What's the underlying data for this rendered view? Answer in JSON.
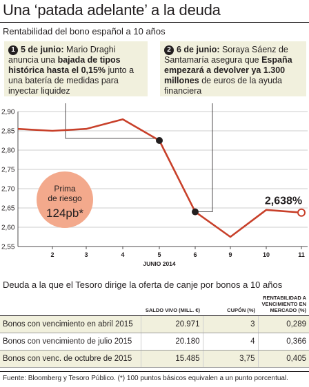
{
  "header": {
    "title": "Una ‘patada adelante’ a la deuda",
    "subtitle": "Rentabilidad del bono español a 10 años"
  },
  "notes": [
    {
      "number": "1",
      "date": "5 de junio:",
      "text_a": " Mario Draghi anuncia una ",
      "bold": "bajada de tipos histórica hasta el 0,15%",
      "text_b": " junto a una batería de medidas para inyectar liquidez"
    },
    {
      "number": "2",
      "date": "6 de junio:",
      "text_a": " Soraya Sáenz de Santamaría asegura que ",
      "bold": "España empezará a devolver ya 1.300 millones",
      "text_b": " de euros de la ayuda financiera"
    }
  ],
  "badge": {
    "line1": "Prima",
    "line2": "de riesgo",
    "value": "124pb*"
  },
  "chart_data": {
    "type": "line",
    "x": [
      "",
      "2",
      "3",
      "4",
      "5",
      "6",
      "9",
      "10",
      "11"
    ],
    "series": [
      {
        "values": [
          2.855,
          2.85,
          2.855,
          2.88,
          2.825,
          2.64,
          2.575,
          2.645,
          2.638
        ]
      }
    ],
    "xlabel": "JUNIO 2014",
    "ylabel": "",
    "ylim": [
      2.55,
      2.9
    ],
    "yticks": [
      "2,90",
      "2,85",
      "2,80",
      "2,75",
      "2,70",
      "2,65",
      "2,60",
      "2,55"
    ],
    "ytick_values": [
      2.9,
      2.85,
      2.8,
      2.75,
      2.7,
      2.65,
      2.6,
      2.55
    ],
    "highlight_label": "2,638%",
    "highlight_index": 8,
    "marked_points": [
      4,
      5
    ],
    "grid": true,
    "colors": {
      "line": "#c8402a",
      "grid": "#9a9a9a",
      "fill": "#f1f0dd"
    }
  },
  "table": {
    "title": "Deuda a la que el Tesoro dirige la oferta de canje por bonos a 10 años",
    "headers": [
      "",
      "SALDO VIVO (MILL. €)",
      "CUPÓN (%)",
      "RENTABILIDAD A VENCIMIENTO EN MERCADO (%)"
    ],
    "rows": [
      [
        "Bonos con vencimiento en abril 2015",
        "20.971",
        "3",
        "0,289"
      ],
      [
        "Bonos con vencimiento de julio 2015",
        "20.180",
        "4",
        "0,366"
      ],
      [
        "Bonos con venc. de octubre de 2015",
        "15.485",
        "3,75",
        "0,405"
      ]
    ]
  },
  "source": "Fuente: Bloomberg y Tesoro Público. (*) 100 puntos básicos equivalen a un punto porcentual."
}
